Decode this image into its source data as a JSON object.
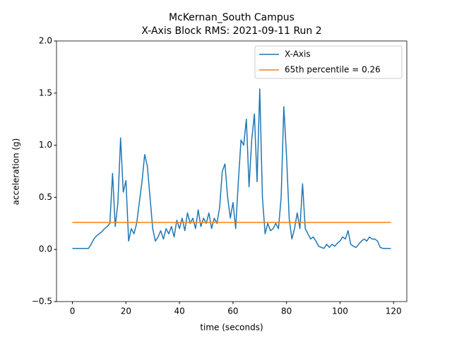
{
  "chart_data": {
    "type": "line",
    "title": "McKernan_South Campus",
    "subtitle": "X-Axis Block RMS: 2021-09-11 Run 2",
    "x_label": "time (seconds)",
    "y_label": "acceleration (g)",
    "xlim": [
      -5.95,
      124.95
    ],
    "xticks": [
      0,
      20,
      40,
      60,
      80,
      100,
      120
    ],
    "ylim": [
      -0.5,
      2.0
    ],
    "yticks": [
      {
        "value": -0.5,
        "label": "−0.5"
      },
      {
        "value": 0,
        "label": "0.0"
      },
      {
        "value": 0.5,
        "label": "0.5"
      },
      {
        "value": 1.0,
        "label": "1.0"
      },
      {
        "value": 1.5,
        "label": "1.5"
      },
      {
        "value": 2.0,
        "label": "2.0"
      }
    ],
    "grid": false,
    "legend": "upper right",
    "series": [
      {
        "name": "X-Axis",
        "color": "#1f77b4",
        "x": [
          0,
          1,
          2,
          3,
          4,
          5,
          6,
          7,
          8,
          9,
          10,
          11,
          12,
          13,
          14,
          15,
          16,
          17,
          18,
          19,
          20,
          21,
          22,
          23,
          24,
          25,
          26,
          27,
          28,
          29,
          30,
          31,
          32,
          33,
          34,
          35,
          36,
          37,
          38,
          39,
          40,
          41,
          42,
          43,
          44,
          45,
          46,
          47,
          48,
          49,
          50,
          51,
          52,
          53,
          54,
          55,
          56,
          57,
          58,
          59,
          60,
          61,
          62,
          63,
          64,
          65,
          66,
          67,
          68,
          69,
          70,
          71,
          72,
          73,
          74,
          75,
          76,
          77,
          78,
          79,
          80,
          81,
          82,
          83,
          84,
          85,
          86,
          87,
          88,
          89,
          90,
          91,
          92,
          93,
          94,
          95,
          96,
          97,
          98,
          99,
          100,
          101,
          102,
          103,
          104,
          105,
          106,
          107,
          108,
          109,
          110,
          111,
          112,
          113,
          114,
          115,
          116,
          117,
          118,
          119
        ],
        "values": [
          0.01,
          0.01,
          0.01,
          0.01,
          0.01,
          0.01,
          0.01,
          0.05,
          0.1,
          0.13,
          0.15,
          0.17,
          0.2,
          0.22,
          0.25,
          0.73,
          0.22,
          0.45,
          1.07,
          0.55,
          0.66,
          0.08,
          0.2,
          0.15,
          0.25,
          0.45,
          0.65,
          0.91,
          0.8,
          0.5,
          0.2,
          0.08,
          0.12,
          0.18,
          0.1,
          0.2,
          0.15,
          0.22,
          0.12,
          0.28,
          0.2,
          0.3,
          0.18,
          0.35,
          0.25,
          0.3,
          0.2,
          0.38,
          0.22,
          0.3,
          0.25,
          0.35,
          0.2,
          0.3,
          0.25,
          0.4,
          0.75,
          0.82,
          0.5,
          0.3,
          0.45,
          0.2,
          0.65,
          1.05,
          1.0,
          1.25,
          0.6,
          1.05,
          1.3,
          0.65,
          1.54,
          0.5,
          0.15,
          0.25,
          0.18,
          0.2,
          0.25,
          0.2,
          0.5,
          1.37,
          0.9,
          0.3,
          0.1,
          0.2,
          0.35,
          0.2,
          0.63,
          0.2,
          0.15,
          0.1,
          0.12,
          0.08,
          0.03,
          0.02,
          0.01,
          0.05,
          0.02,
          0.05,
          0.03,
          0.06,
          0.08,
          0.12,
          0.1,
          0.18,
          0.05,
          0.03,
          0.02,
          0.05,
          0.08,
          0.1,
          0.08,
          0.12,
          0.1,
          0.1,
          0.08,
          0.02,
          0.01,
          0.01,
          0.01,
          0.01
        ]
      },
      {
        "name": "65th percentile = 0.26",
        "color": "#ff7f0e",
        "x": [
          0,
          119
        ],
        "values": [
          0.26,
          0.26
        ]
      }
    ]
  }
}
